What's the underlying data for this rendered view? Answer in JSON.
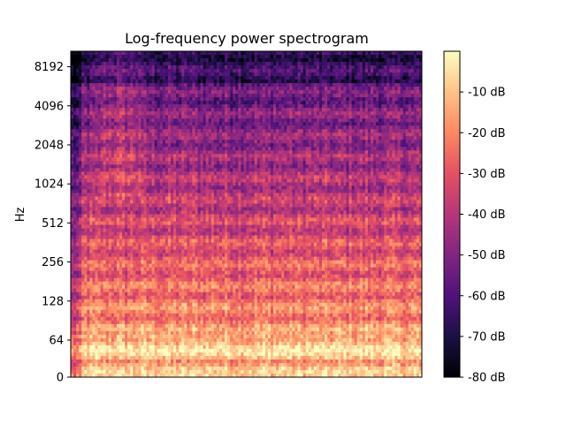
{
  "chart_data": {
    "type": "heatmap",
    "title": "Log-frequency power spectrogram",
    "xlabel": "",
    "ylabel": "Hz",
    "y_scale": "log",
    "y_ticks": [
      "0",
      "64",
      "128",
      "256",
      "512",
      "1024",
      "2048",
      "4096",
      "8192"
    ],
    "y_tick_values": [
      0,
      64,
      128,
      256,
      512,
      1024,
      2048,
      4096,
      8192
    ],
    "ylim": [
      0,
      11025
    ],
    "colormap": "magma",
    "colorbar": {
      "min": -80,
      "max": 0,
      "ticks": [
        "-10 dB",
        "-20 dB",
        "-30 dB",
        "-40 dB",
        "-50 dB",
        "-60 dB",
        "-70 dB",
        "-80 dB"
      ],
      "tick_values": [
        -10,
        -20,
        -30,
        -40,
        -50,
        -60,
        -70,
        -80
      ]
    },
    "grid": false
  }
}
